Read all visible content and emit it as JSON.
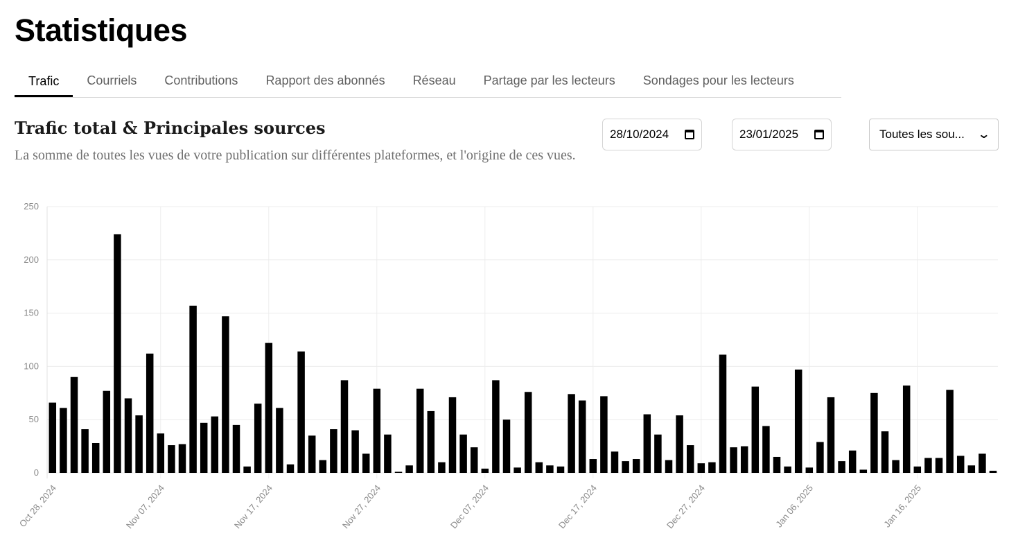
{
  "page": {
    "title": "Statistiques"
  },
  "tabs": [
    {
      "label": "Trafic",
      "active": true
    },
    {
      "label": "Courriels"
    },
    {
      "label": "Contributions"
    },
    {
      "label": "Rapport des abonnés"
    },
    {
      "label": "Réseau"
    },
    {
      "label": "Partage par les lecteurs"
    },
    {
      "label": "Sondages pour les lecteurs"
    }
  ],
  "section": {
    "title": "Trafic total & Principales sources",
    "description": "La somme de toutes les vues de votre publication sur différentes plateformes, et l'origine de ces vues."
  },
  "filters": {
    "start_date": "28/10/2024",
    "end_date": "23/01/2025",
    "source": "Toutes les sou..."
  },
  "icons": {
    "date": "calendar-icon",
    "select": "chevron-down-icon"
  },
  "chart_data": {
    "type": "bar",
    "x_start": "2024-10-28",
    "x_end": "2025-01-23",
    "x_tick_labels": [
      "Oct 28, 2024",
      "Nov 07, 2024",
      "Nov 17, 2024",
      "Nov 27, 2024",
      "Dec 07, 2024",
      "Dec 17, 2024",
      "Dec 27, 2024",
      "Jan 06, 2025",
      "Jan 16, 2025"
    ],
    "y_ticks": [
      0,
      50,
      100,
      150,
      200,
      250
    ],
    "ylim": [
      0,
      250
    ],
    "grid": true,
    "bar_color": "#000000",
    "values": [
      66,
      61,
      90,
      41,
      28,
      77,
      224,
      70,
      54,
      112,
      37,
      26,
      27,
      157,
      47,
      53,
      147,
      45,
      6,
      65,
      122,
      61,
      8,
      114,
      35,
      12,
      41,
      87,
      40,
      18,
      79,
      36,
      1,
      7,
      79,
      58,
      10,
      71,
      36,
      24,
      4,
      87,
      50,
      5,
      76,
      10,
      7,
      6,
      74,
      68,
      13,
      72,
      20,
      11,
      13,
      55,
      36,
      12,
      54,
      26,
      9,
      10,
      111,
      24,
      25,
      81,
      44,
      15,
      6,
      97,
      5,
      29,
      71,
      11,
      21,
      3,
      75,
      39,
      12,
      82,
      6,
      14,
      14,
      78,
      16,
      7,
      18,
      2
    ]
  }
}
